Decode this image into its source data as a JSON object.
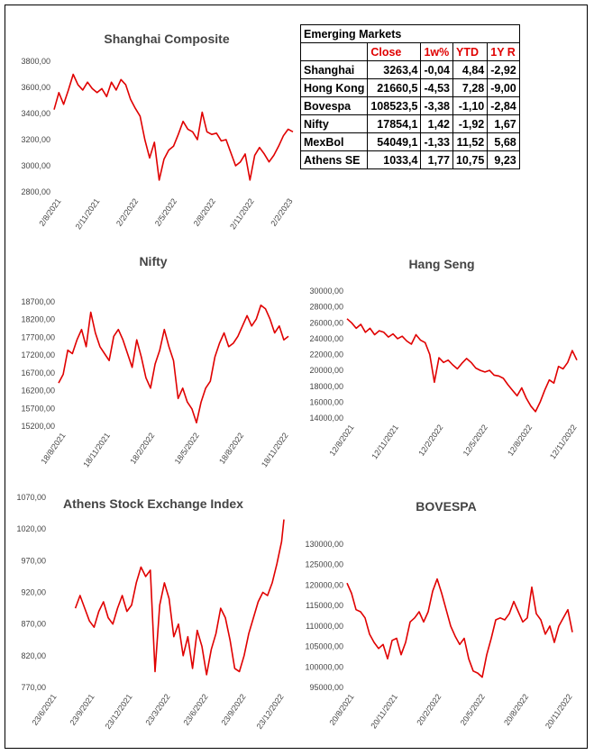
{
  "table": {
    "title": "Emerging Markets",
    "columns": [
      "Close",
      "1w%",
      "YTD",
      "1Y R"
    ],
    "rows": [
      {
        "name": "Shanghai",
        "values": [
          "3263,4",
          "-0,04",
          "4,84",
          "-2,92"
        ]
      },
      {
        "name": "Hong Kong",
        "values": [
          "21660,5",
          "-4,53",
          "7,28",
          "-9,00"
        ]
      },
      {
        "name": "Bovespa",
        "values": [
          "108523,5",
          "-3,38",
          "-1,10",
          "-2,84"
        ]
      },
      {
        "name": "Nifty",
        "values": [
          "17854,1",
          "1,42",
          "-1,92",
          "1,67"
        ]
      },
      {
        "name": "MexBol",
        "values": [
          "54049,1",
          "-1,33",
          "11,52",
          "5,68"
        ]
      },
      {
        "name": "Athens SE",
        "values": [
          "1033,4",
          "1,77",
          "10,75",
          "9,23"
        ]
      }
    ]
  },
  "colors": {
    "line": "#e00000",
    "header": "#e00000"
  },
  "chart_data": [
    {
      "type": "line",
      "title": "Shanghai Composite",
      "yticks": [
        "2800,00",
        "3000,00",
        "3200,00",
        "3400,00",
        "3600,00",
        "3800,00"
      ],
      "ylim": [
        2800,
        3800
      ],
      "xticks": [
        "2/8/2021",
        "2/11/2021",
        "2/2/2022",
        "2/5/2022",
        "2/8/2022",
        "2/11/2022",
        "2/2/2023"
      ],
      "x": [
        0,
        0.02,
        0.04,
        0.06,
        0.08,
        0.1,
        0.12,
        0.14,
        0.16,
        0.18,
        0.2,
        0.22,
        0.24,
        0.26,
        0.28,
        0.3,
        0.32,
        0.34,
        0.36,
        0.38,
        0.4,
        0.42,
        0.44,
        0.46,
        0.48,
        0.5,
        0.52,
        0.54,
        0.56,
        0.58,
        0.6,
        0.62,
        0.64,
        0.66,
        0.68,
        0.7,
        0.72,
        0.74,
        0.76,
        0.78,
        0.8,
        0.82,
        0.84,
        0.86,
        0.88,
        0.9,
        0.92,
        0.94,
        0.96,
        0.98,
        1.0
      ],
      "values": [
        3430,
        3560,
        3470,
        3580,
        3700,
        3620,
        3580,
        3640,
        3590,
        3560,
        3590,
        3530,
        3640,
        3580,
        3660,
        3620,
        3510,
        3440,
        3380,
        3200,
        3060,
        3180,
        2890,
        3050,
        3120,
        3150,
        3240,
        3340,
        3280,
        3260,
        3200,
        3410,
        3260,
        3240,
        3250,
        3190,
        3200,
        3100,
        3000,
        3030,
        3090,
        2890,
        3080,
        3140,
        3090,
        3030,
        3080,
        3150,
        3230,
        3280,
        3260
      ]
    },
    {
      "type": "line",
      "title": "Nifty",
      "yticks": [
        "15200,00",
        "15700,00",
        "16200,00",
        "16700,00",
        "17200,00",
        "17700,00",
        "18200,00",
        "18700,00"
      ],
      "ylim": [
        15200,
        18800
      ],
      "xticks": [
        "18/8/2021",
        "18/11/2021",
        "18/2/2022",
        "18/5/2022",
        "18/8/2022",
        "18/11/2022"
      ],
      "x": [
        0,
        0.02,
        0.04,
        0.06,
        0.08,
        0.1,
        0.12,
        0.14,
        0.16,
        0.18,
        0.2,
        0.22,
        0.24,
        0.26,
        0.28,
        0.3,
        0.32,
        0.34,
        0.36,
        0.38,
        0.4,
        0.42,
        0.44,
        0.46,
        0.48,
        0.5,
        0.52,
        0.54,
        0.56,
        0.58,
        0.6,
        0.62,
        0.64,
        0.66,
        0.68,
        0.7,
        0.72,
        0.74,
        0.76,
        0.78,
        0.8,
        0.82,
        0.84,
        0.86,
        0.88,
        0.9,
        0.92,
        0.94,
        0.96,
        0.98,
        1.0
      ],
      "values": [
        16450,
        16700,
        17400,
        17300,
        17700,
        18000,
        17500,
        18500,
        17900,
        17500,
        17300,
        17100,
        17800,
        18000,
        17700,
        17300,
        16900,
        17700,
        17200,
        16600,
        16300,
        17000,
        17400,
        18000,
        17500,
        17100,
        16000,
        16300,
        15900,
        15700,
        15300,
        15900,
        16300,
        16500,
        17200,
        17600,
        17900,
        17500,
        17600,
        17800,
        18100,
        18400,
        18100,
        18300,
        18700,
        18600,
        18300,
        17900,
        18100,
        17700,
        17800
      ]
    },
    {
      "type": "line",
      "title": "Hang Seng",
      "yticks": [
        "14000,00",
        "16000,00",
        "18000,00",
        "20000,00",
        "22000,00",
        "24000,00",
        "26000,00",
        "28000,00",
        "30000,00"
      ],
      "ylim": [
        14000,
        30000
      ],
      "xticks": [
        "12/8/2021",
        "12/11/2021",
        "12/2/2022",
        "12/5/2022",
        "12/8/2022",
        "12/11/2022"
      ],
      "x": [
        0,
        0.02,
        0.04,
        0.06,
        0.08,
        0.1,
        0.12,
        0.14,
        0.16,
        0.18,
        0.2,
        0.22,
        0.24,
        0.26,
        0.28,
        0.3,
        0.32,
        0.34,
        0.36,
        0.38,
        0.4,
        0.42,
        0.44,
        0.46,
        0.48,
        0.5,
        0.52,
        0.54,
        0.56,
        0.58,
        0.6,
        0.62,
        0.64,
        0.66,
        0.68,
        0.7,
        0.72,
        0.74,
        0.76,
        0.78,
        0.8,
        0.82,
        0.84,
        0.86,
        0.88,
        0.9,
        0.92,
        0.94,
        0.96,
        0.98,
        1.0
      ],
      "values": [
        26500,
        26000,
        25300,
        25800,
        24800,
        25300,
        24500,
        25000,
        24800,
        24200,
        24600,
        24000,
        24300,
        23700,
        23300,
        24500,
        23800,
        23500,
        22000,
        18500,
        21600,
        21000,
        21300,
        20700,
        20200,
        20900,
        21500,
        21000,
        20300,
        20000,
        19800,
        20000,
        19400,
        19300,
        19000,
        18200,
        17500,
        16800,
        17800,
        16500,
        15500,
        14800,
        16000,
        17500,
        18800,
        18400,
        20500,
        20200,
        21000,
        22500,
        21300
      ]
    },
    {
      "type": "line",
      "title": "Athens Stock Exchange Index",
      "yticks": [
        "770,00",
        "820,00",
        "870,00",
        "920,00",
        "970,00",
        "1020,00",
        "1070,00"
      ],
      "ylim": [
        770,
        1070
      ],
      "xticks": [
        "23/6/2021",
        "23/9/2021",
        "23/12/2021",
        "23/3/2022",
        "23/6/2022",
        "23/9/2022",
        "23/12/2022"
      ],
      "x": [
        0.11,
        0.13,
        0.15,
        0.17,
        0.19,
        0.21,
        0.23,
        0.25,
        0.27,
        0.29,
        0.31,
        0.33,
        0.35,
        0.37,
        0.39,
        0.41,
        0.43,
        0.45,
        0.47,
        0.49,
        0.51,
        0.53,
        0.55,
        0.57,
        0.59,
        0.61,
        0.63,
        0.65,
        0.67,
        0.69,
        0.71,
        0.73,
        0.75,
        0.77,
        0.79,
        0.81,
        0.83,
        0.85,
        0.87,
        0.89,
        0.91,
        0.93,
        0.95,
        0.97,
        0.99,
        1.0
      ],
      "values": [
        895,
        915,
        895,
        875,
        865,
        890,
        905,
        880,
        870,
        895,
        915,
        890,
        900,
        935,
        960,
        945,
        955,
        795,
        900,
        935,
        910,
        850,
        870,
        820,
        850,
        800,
        860,
        835,
        790,
        830,
        855,
        895,
        880,
        845,
        800,
        795,
        820,
        855,
        880,
        905,
        920,
        915,
        935,
        965,
        1000,
        1035
      ]
    },
    {
      "type": "line",
      "title": "BOVESPA",
      "yticks": [
        "95000,00",
        "100000,00",
        "105000,00",
        "110000,00",
        "115000,00",
        "120000,00",
        "125000,00",
        "130000,00"
      ],
      "ylim": [
        95000,
        130000
      ],
      "xticks": [
        "20/8/2021",
        "20/11/2021",
        "20/2/2022",
        "20/5/2022",
        "20/8/2022",
        "20/11/2022"
      ],
      "x": [
        0,
        0.02,
        0.04,
        0.06,
        0.08,
        0.1,
        0.12,
        0.14,
        0.16,
        0.18,
        0.2,
        0.22,
        0.24,
        0.26,
        0.28,
        0.3,
        0.32,
        0.34,
        0.36,
        0.38,
        0.4,
        0.42,
        0.44,
        0.46,
        0.48,
        0.5,
        0.52,
        0.54,
        0.56,
        0.58,
        0.6,
        0.62,
        0.64,
        0.66,
        0.68,
        0.7,
        0.72,
        0.74,
        0.76,
        0.78,
        0.8,
        0.82,
        0.84,
        0.86,
        0.88,
        0.9,
        0.92,
        0.94,
        0.96,
        0.98,
        1.0
      ],
      "values": [
        120500,
        118000,
        114000,
        113500,
        112000,
        108000,
        106000,
        104500,
        105500,
        102000,
        106500,
        107000,
        103000,
        106000,
        111000,
        112000,
        113500,
        111000,
        113500,
        118500,
        121500,
        118000,
        114000,
        110000,
        107500,
        105500,
        107000,
        102000,
        99000,
        98500,
        97500,
        103000,
        107000,
        111500,
        112000,
        111500,
        113000,
        116000,
        113500,
        111000,
        112000,
        119500,
        113000,
        111500,
        108000,
        110000,
        106000,
        110000,
        112000,
        114000,
        108500
      ]
    }
  ]
}
